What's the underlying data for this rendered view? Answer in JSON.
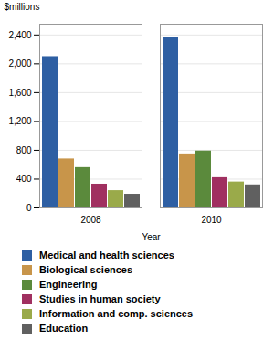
{
  "chart_data": {
    "type": "bar",
    "categories": [
      "2008",
      "2010"
    ],
    "series": [
      {
        "name": "Medical and health sciences",
        "color": "#2e5fa3",
        "values": [
          2100,
          2370
        ]
      },
      {
        "name": "Biological sciences",
        "color": "#c8954a",
        "values": [
          680,
          750
        ]
      },
      {
        "name": "Engineering",
        "color": "#5b8a3c",
        "values": [
          560,
          790
        ]
      },
      {
        "name": "Studies in human society",
        "color": "#a03060",
        "values": [
          330,
          420
        ]
      },
      {
        "name": "Information and comp. sciences",
        "color": "#9aaa4a",
        "values": [
          240,
          360
        ]
      },
      {
        "name": "Education",
        "color": "#606060",
        "values": [
          190,
          320
        ]
      }
    ],
    "xlabel": "Year",
    "ylabel": "$millions",
    "ylim": [
      0,
      2550
    ],
    "yticks": [
      0,
      400,
      800,
      {
        "value": 1200,
        "label": "1,200"
      },
      {
        "value": 1600,
        "label": "1,600"
      },
      {
        "value": 2000,
        "label": "2,000"
      },
      {
        "value": 2400,
        "label": "2,400"
      }
    ],
    "grid": true,
    "legend": "bottom"
  }
}
